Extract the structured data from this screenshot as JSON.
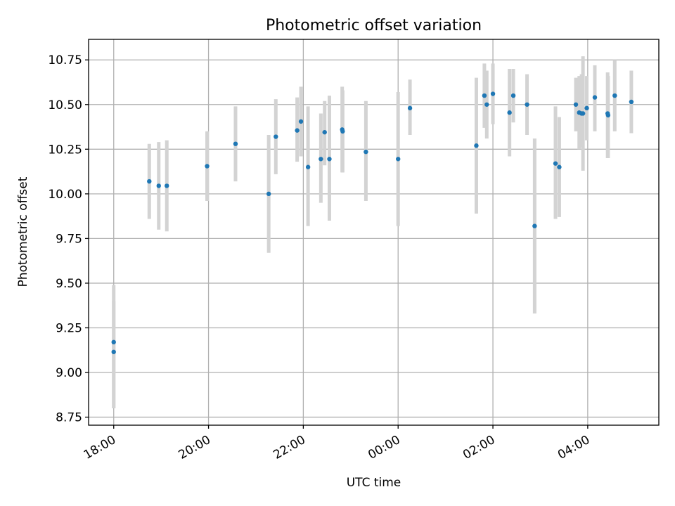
{
  "chart_data": {
    "type": "scatter",
    "title": "Photometric offset variation",
    "xlabel": "UTC time",
    "ylabel": "Photometric offset",
    "x_unit": "hours",
    "x_axis": "time",
    "xlim": [
      17.47,
      29.5
    ],
    "ylim": [
      8.705,
      10.865
    ],
    "grid": true,
    "colors": {
      "marker": "#1f77b4",
      "errorbar": "#d3d3d3",
      "grid": "#b0b0b0"
    },
    "xticks": [
      {
        "value": 18,
        "label": "18:00"
      },
      {
        "value": 20,
        "label": "20:00"
      },
      {
        "value": 22,
        "label": "22:00"
      },
      {
        "value": 24,
        "label": "00:00"
      },
      {
        "value": 26,
        "label": "02:00"
      },
      {
        "value": 28,
        "label": "04:00"
      }
    ],
    "yticks": [
      {
        "value": 8.75,
        "label": "8.75"
      },
      {
        "value": 9.0,
        "label": "9.00"
      },
      {
        "value": 9.25,
        "label": "9.25"
      },
      {
        "value": 9.5,
        "label": "9.50"
      },
      {
        "value": 9.75,
        "label": "9.75"
      },
      {
        "value": 10.0,
        "label": "10.00"
      },
      {
        "value": 10.25,
        "label": "10.25"
      },
      {
        "value": 10.5,
        "label": "10.50"
      },
      {
        "value": 10.75,
        "label": "10.75"
      }
    ],
    "points": [
      {
        "x": 18.0,
        "y": 9.17,
        "low": 8.8,
        "high": 9.49
      },
      {
        "x": 18.0,
        "y": 9.115,
        "low": 8.8,
        "high": 9.4
      },
      {
        "x": 18.75,
        "y": 10.07,
        "low": 9.86,
        "high": 10.28
      },
      {
        "x": 18.95,
        "y": 10.045,
        "low": 9.8,
        "high": 10.29
      },
      {
        "x": 19.12,
        "y": 10.045,
        "low": 9.79,
        "high": 10.3
      },
      {
        "x": 19.97,
        "y": 10.155,
        "low": 9.96,
        "high": 10.35
      },
      {
        "x": 20.57,
        "y": 10.28,
        "low": 10.07,
        "high": 10.49
      },
      {
        "x": 21.27,
        "y": 10.0,
        "low": 9.67,
        "high": 10.33
      },
      {
        "x": 21.42,
        "y": 10.32,
        "low": 10.11,
        "high": 10.53
      },
      {
        "x": 21.87,
        "y": 10.355,
        "low": 10.18,
        "high": 10.54
      },
      {
        "x": 21.95,
        "y": 10.405,
        "low": 10.21,
        "high": 10.6
      },
      {
        "x": 22.1,
        "y": 10.15,
        "low": 9.82,
        "high": 10.49
      },
      {
        "x": 22.37,
        "y": 10.195,
        "low": 9.95,
        "high": 10.45
      },
      {
        "x": 22.45,
        "y": 10.345,
        "low": 10.16,
        "high": 10.52
      },
      {
        "x": 22.55,
        "y": 10.195,
        "low": 9.85,
        "high": 10.55
      },
      {
        "x": 22.82,
        "y": 10.36,
        "low": 10.12,
        "high": 10.6
      },
      {
        "x": 22.83,
        "y": 10.35,
        "low": 10.12,
        "high": 10.58
      },
      {
        "x": 23.32,
        "y": 10.235,
        "low": 9.96,
        "high": 10.52
      },
      {
        "x": 24.0,
        "y": 10.195,
        "low": 9.82,
        "high": 10.57
      },
      {
        "x": 24.25,
        "y": 10.48,
        "low": 10.33,
        "high": 10.64
      },
      {
        "x": 25.65,
        "y": 10.27,
        "low": 9.89,
        "high": 10.65
      },
      {
        "x": 25.82,
        "y": 10.55,
        "low": 10.37,
        "high": 10.73
      },
      {
        "x": 25.87,
        "y": 10.5,
        "low": 10.31,
        "high": 10.69
      },
      {
        "x": 26.0,
        "y": 10.56,
        "low": 10.39,
        "high": 10.73
      },
      {
        "x": 26.35,
        "y": 10.455,
        "low": 10.21,
        "high": 10.7
      },
      {
        "x": 26.43,
        "y": 10.55,
        "low": 10.4,
        "high": 10.7
      },
      {
        "x": 26.72,
        "y": 10.5,
        "low": 10.33,
        "high": 10.67
      },
      {
        "x": 26.88,
        "y": 9.82,
        "low": 9.33,
        "high": 10.31
      },
      {
        "x": 27.32,
        "y": 10.17,
        "low": 9.86,
        "high": 10.49
      },
      {
        "x": 27.4,
        "y": 10.15,
        "low": 9.87,
        "high": 10.43
      },
      {
        "x": 27.75,
        "y": 10.5,
        "low": 10.35,
        "high": 10.65
      },
      {
        "x": 27.82,
        "y": 10.455,
        "low": 10.25,
        "high": 10.66
      },
      {
        "x": 27.87,
        "y": 10.45,
        "low": 10.26,
        "high": 10.67
      },
      {
        "x": 27.9,
        "y": 10.45,
        "low": 10.13,
        "high": 10.77
      },
      {
        "x": 27.98,
        "y": 10.48,
        "low": 10.3,
        "high": 10.66
      },
      {
        "x": 28.15,
        "y": 10.54,
        "low": 10.35,
        "high": 10.72
      },
      {
        "x": 28.42,
        "y": 10.45,
        "low": 10.2,
        "high": 10.68
      },
      {
        "x": 28.43,
        "y": 10.44,
        "low": 10.2,
        "high": 10.66
      },
      {
        "x": 28.57,
        "y": 10.55,
        "low": 10.35,
        "high": 10.75
      },
      {
        "x": 28.92,
        "y": 10.515,
        "low": 10.34,
        "high": 10.69
      }
    ]
  }
}
